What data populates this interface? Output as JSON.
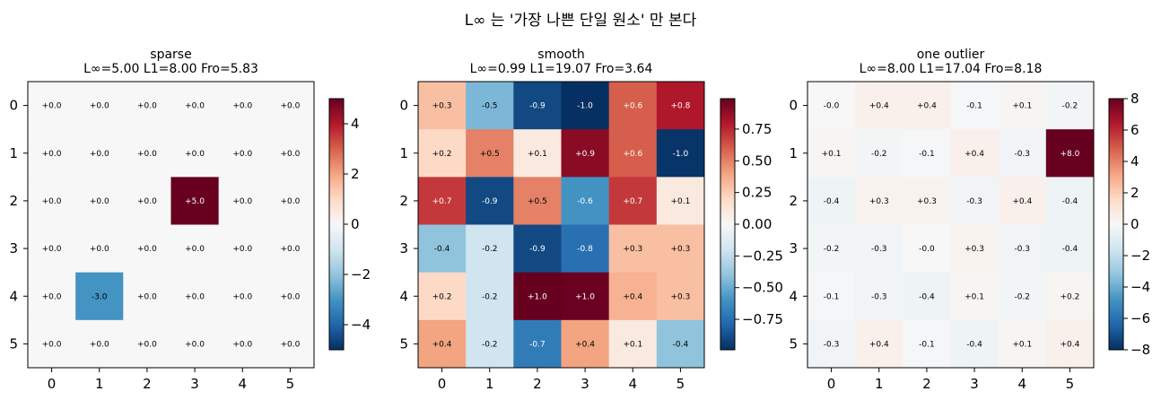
{
  "suptitle": "L∞ 는 '가장 나쁜 단일 원소' 만 본다",
  "chart_data": [
    {
      "type": "heatmap",
      "title": "sparse",
      "subtitle": "L∞=5.00  L1=8.00  Fro=5.83",
      "x_ticks": [
        "0",
        "1",
        "2",
        "3",
        "4",
        "5"
      ],
      "y_ticks": [
        "0",
        "1",
        "2",
        "3",
        "4",
        "5"
      ],
      "colormap": "RdBu_r",
      "vmin": -5,
      "vmax": 5,
      "colorbar_ticks": [
        "−4",
        "−2",
        "0",
        "2",
        "4"
      ],
      "colorbar_tick_values": [
        -4,
        -2,
        0,
        2,
        4
      ],
      "cell_labels": [
        [
          "+0.0",
          "+0.0",
          "+0.0",
          "+0.0",
          "+0.0",
          "+0.0"
        ],
        [
          "+0.0",
          "+0.0",
          "+0.0",
          "+0.0",
          "+0.0",
          "+0.0"
        ],
        [
          "+0.0",
          "+0.0",
          "+0.0",
          "+5.0",
          "+0.0",
          "+0.0"
        ],
        [
          "+0.0",
          "+0.0",
          "+0.0",
          "+0.0",
          "+0.0",
          "+0.0"
        ],
        [
          "+0.0",
          "-3.0",
          "+0.0",
          "+0.0",
          "+0.0",
          "+0.0"
        ],
        [
          "+0.0",
          "+0.0",
          "+0.0",
          "+0.0",
          "+0.0",
          "+0.0"
        ]
      ],
      "values": [
        [
          0,
          0,
          0,
          0,
          0,
          0
        ],
        [
          0,
          0,
          0,
          0,
          0,
          0
        ],
        [
          0,
          0,
          0,
          5.0,
          0,
          0
        ],
        [
          0,
          0,
          0,
          0,
          0,
          0
        ],
        [
          0,
          -3.0,
          0,
          0,
          0,
          0
        ],
        [
          0,
          0,
          0,
          0,
          0,
          0
        ]
      ]
    },
    {
      "type": "heatmap",
      "title": "smooth",
      "subtitle": "L∞=0.99  L1=19.07  Fro=3.64",
      "x_ticks": [
        "0",
        "1",
        "2",
        "3",
        "4",
        "5"
      ],
      "y_ticks": [
        "0",
        "1",
        "2",
        "3",
        "4",
        "5"
      ],
      "colormap": "RdBu_r",
      "vmin": -0.99,
      "vmax": 0.99,
      "colorbar_ticks": [
        "−0.75",
        "−0.50",
        "−0.25",
        "0.00",
        "0.25",
        "0.50",
        "0.75"
      ],
      "colorbar_tick_values": [
        -0.75,
        -0.5,
        -0.25,
        0,
        0.25,
        0.5,
        0.75
      ],
      "cell_labels": [
        [
          "+0.3",
          "-0.5",
          "-0.9",
          "-1.0",
          "+0.6",
          "+0.8"
        ],
        [
          "+0.2",
          "+0.5",
          "+0.1",
          "+0.9",
          "+0.6",
          "-1.0"
        ],
        [
          "+0.7",
          "-0.9",
          "+0.5",
          "-0.6",
          "+0.7",
          "+0.1"
        ],
        [
          "-0.4",
          "-0.2",
          "-0.9",
          "-0.8",
          "+0.3",
          "+0.3"
        ],
        [
          "+0.2",
          "-0.2",
          "+1.0",
          "+1.0",
          "+0.4",
          "+0.3"
        ],
        [
          "+0.4",
          "-0.2",
          "-0.7",
          "+0.4",
          "+0.1",
          "-0.4"
        ]
      ],
      "values": [
        [
          0.3,
          -0.45,
          -0.9,
          -0.99,
          0.6,
          0.8
        ],
        [
          0.2,
          0.5,
          0.1,
          0.9,
          0.6,
          -0.97
        ],
        [
          0.7,
          -0.9,
          0.5,
          -0.6,
          0.7,
          0.1
        ],
        [
          -0.4,
          -0.2,
          -0.9,
          -0.75,
          0.3,
          0.3
        ],
        [
          0.2,
          -0.2,
          0.99,
          0.98,
          0.35,
          0.3
        ],
        [
          0.4,
          -0.2,
          -0.7,
          0.4,
          0.1,
          -0.4
        ]
      ]
    },
    {
      "type": "heatmap",
      "title": "one outlier",
      "subtitle": "L∞=8.00  L1=17.04  Fro=8.18",
      "x_ticks": [
        "0",
        "1",
        "2",
        "3",
        "4",
        "5"
      ],
      "y_ticks": [
        "0",
        "1",
        "2",
        "3",
        "4",
        "5"
      ],
      "colormap": "RdBu_r",
      "vmin": -8,
      "vmax": 8,
      "colorbar_ticks": [
        "−8",
        "−6",
        "−4",
        "−2",
        "0",
        "2",
        "4",
        "6",
        "8"
      ],
      "colorbar_tick_values": [
        -8,
        -6,
        -4,
        -2,
        0,
        2,
        4,
        6,
        8
      ],
      "cell_labels": [
        [
          "-0.0",
          "+0.4",
          "+0.4",
          "-0.1",
          "+0.1",
          "-0.2"
        ],
        [
          "+0.1",
          "-0.2",
          "-0.1",
          "+0.4",
          "-0.3",
          "+8.0"
        ],
        [
          "-0.4",
          "+0.3",
          "+0.3",
          "-0.3",
          "+0.4",
          "-0.4"
        ],
        [
          "-0.2",
          "-0.3",
          "-0.0",
          "+0.3",
          "-0.3",
          "-0.4"
        ],
        [
          "-0.1",
          "-0.3",
          "-0.4",
          "+0.1",
          "-0.2",
          "+0.2"
        ],
        [
          "-0.3",
          "+0.4",
          "-0.1",
          "-0.4",
          "+0.1",
          "+0.4"
        ]
      ],
      "values": [
        [
          -0.02,
          0.4,
          0.4,
          -0.1,
          0.1,
          -0.2
        ],
        [
          0.1,
          -0.2,
          -0.1,
          0.4,
          -0.3,
          8.0
        ],
        [
          -0.4,
          0.3,
          0.3,
          -0.3,
          0.4,
          -0.4
        ],
        [
          -0.2,
          -0.3,
          -0.02,
          0.3,
          -0.3,
          -0.4
        ],
        [
          -0.1,
          -0.3,
          -0.4,
          0.1,
          -0.2,
          0.2
        ],
        [
          -0.3,
          0.4,
          -0.1,
          -0.4,
          0.1,
          0.4
        ]
      ]
    }
  ]
}
